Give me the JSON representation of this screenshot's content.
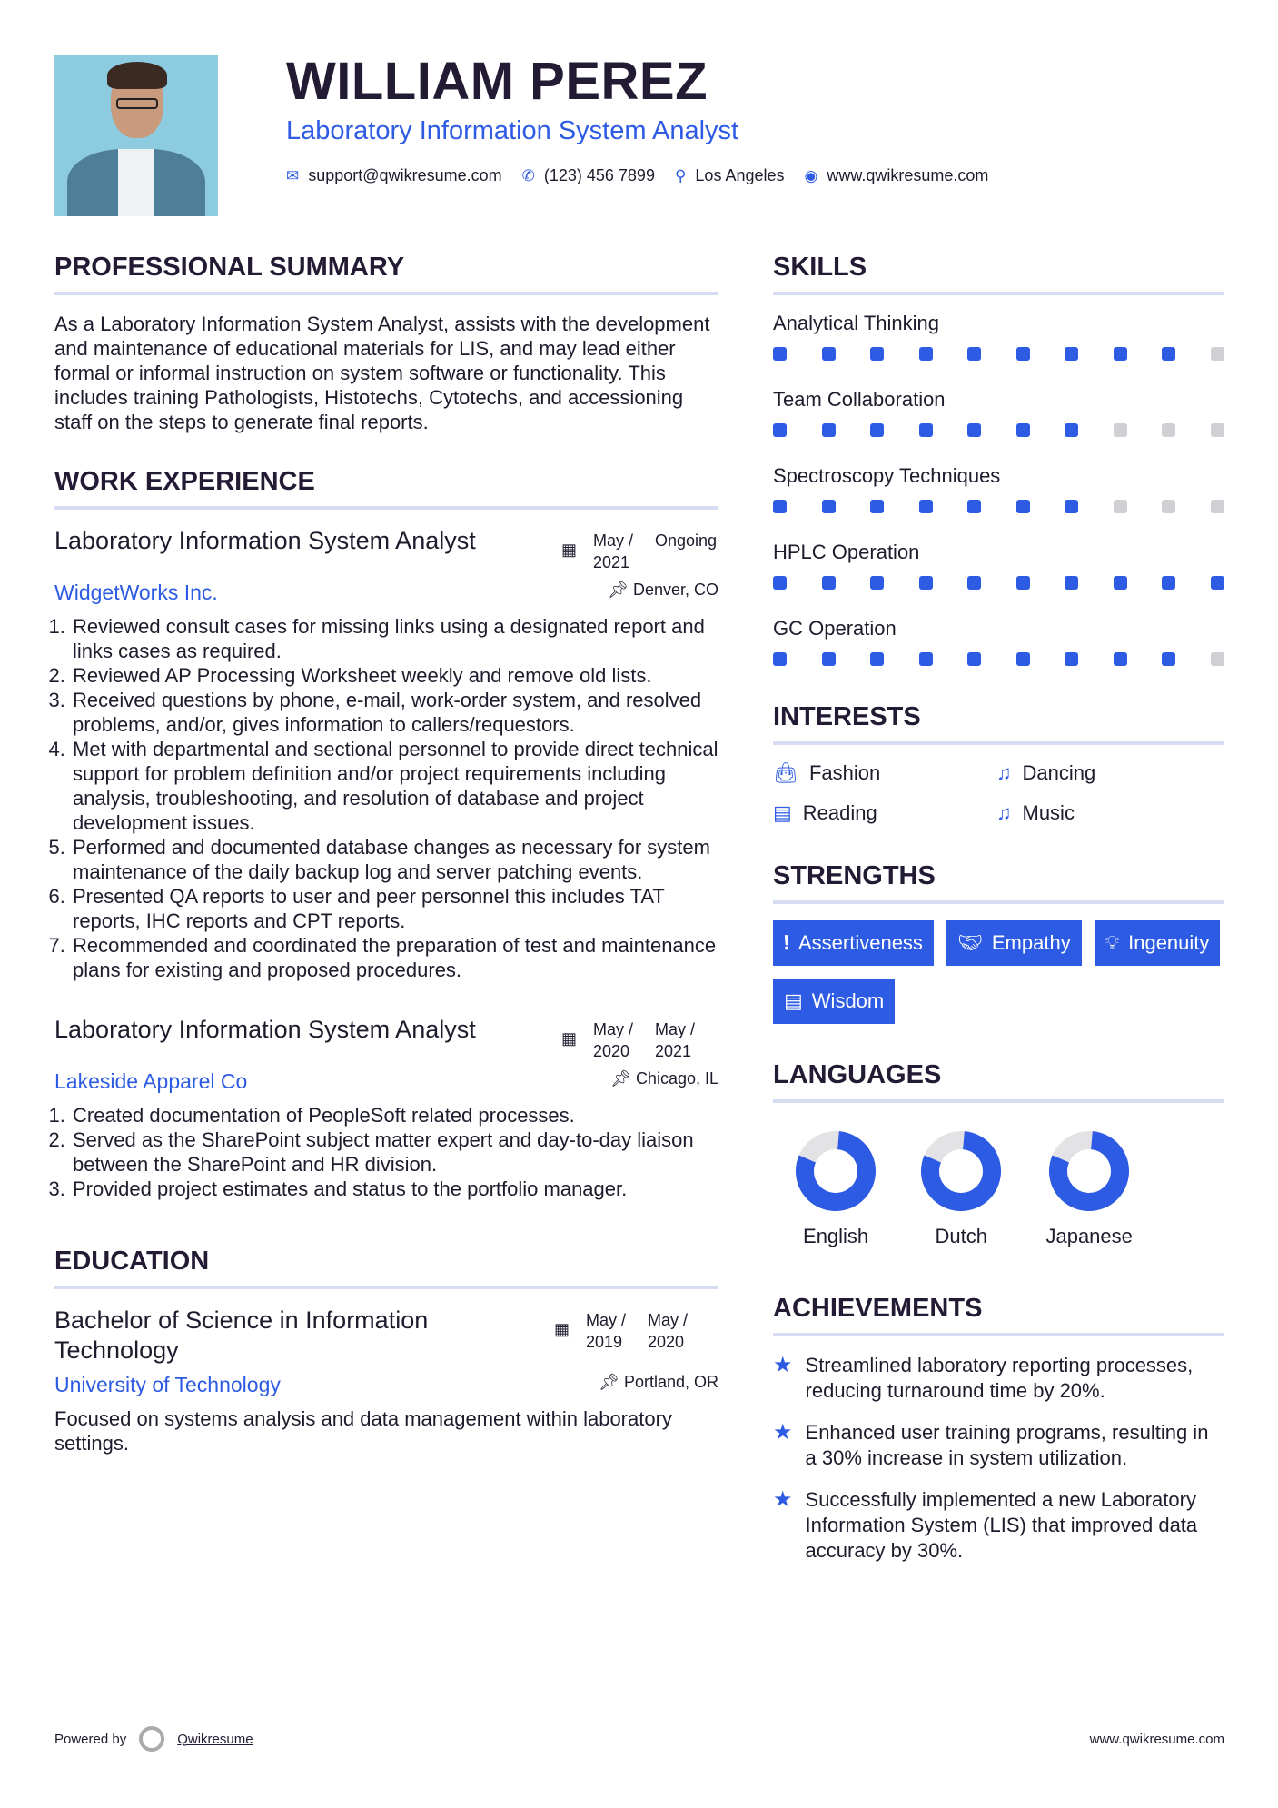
{
  "header": {
    "name": "WILLIAM PEREZ",
    "title": "Laboratory Information System Analyst",
    "email": "support@qwikresume.com",
    "phone": "(123) 456 7899",
    "location": "Los Angeles",
    "website": "www.qwikresume.com"
  },
  "accent_color": "#2d5be3",
  "summary": {
    "heading": "PROFESSIONAL SUMMARY",
    "text": "As a Laboratory Information System Analyst, assists with the development and maintenance of educational materials for LIS, and may lead either formal or informal instruction on system software or functionality. This includes training Pathologists, Histotechs, Cytotechs, and accessioning staff on the steps to generate final reports."
  },
  "experience": {
    "heading": "WORK EXPERIENCE",
    "jobs": [
      {
        "title": "Laboratory Information System Analyst",
        "start": "May / 2021",
        "end": "Ongoing",
        "company": "WidgetWorks Inc.",
        "location": "Denver, CO",
        "items": [
          "Reviewed consult cases for missing links using a designated report and links cases as required.",
          "Reviewed AP Processing Worksheet weekly and remove old lists.",
          "Received questions by phone, e-mail, work-order system, and resolved problems, and/or, gives information to callers/requestors.",
          "Met with departmental and sectional personnel to provide direct technical support for problem definition and/or project requirements including analysis, troubleshooting, and resolution of database and project development issues.",
          "Performed and documented database changes as necessary for system maintenance of the daily backup log and server patching events.",
          "Presented QA reports to user and peer personnel this includes TAT reports, IHC reports and CPT reports.",
          "Recommended and coordinated the preparation of test and maintenance plans for existing and proposed procedures."
        ]
      },
      {
        "title": "Laboratory Information System Analyst",
        "start": "May / 2020",
        "end": "May / 2021",
        "company": "Lakeside Apparel Co",
        "location": "Chicago, IL",
        "items": [
          "Created documentation of PeopleSoft related processes.",
          "Served as the SharePoint subject matter expert and day-to-day liaison between the SharePoint and HR division.",
          "Provided project estimates and status to the portfolio manager."
        ]
      }
    ]
  },
  "education": {
    "heading": "EDUCATION",
    "degree": "Bachelor of Science in Information Technology",
    "start": "May / 2019",
    "end": "May / 2020",
    "school": "University of Technology",
    "location": "Portland, OR",
    "text": "Focused on systems analysis and data management within laboratory settings."
  },
  "skills": {
    "heading": "SKILLS",
    "items": [
      {
        "name": "Analytical Thinking",
        "level": 9,
        "max": 10
      },
      {
        "name": "Team Collaboration",
        "level": 7,
        "max": 10
      },
      {
        "name": "Spectroscopy Techniques",
        "level": 7,
        "max": 10
      },
      {
        "name": "HPLC Operation",
        "level": 10,
        "max": 10
      },
      {
        "name": "GC Operation",
        "level": 9,
        "max": 10
      }
    ]
  },
  "interests": {
    "heading": "INTERESTS",
    "items": [
      {
        "label": "Fashion",
        "icon": "shopping-bag-icon"
      },
      {
        "label": "Dancing",
        "icon": "music-icon"
      },
      {
        "label": "Reading",
        "icon": "book-icon"
      },
      {
        "label": "Music",
        "icon": "music-icon"
      }
    ]
  },
  "strengths": {
    "heading": "STRENGTHS",
    "items": [
      {
        "label": "Assertiveness",
        "icon": "exclamation-circle-icon"
      },
      {
        "label": "Empathy",
        "icon": "handshake-icon"
      },
      {
        "label": "Ingenuity",
        "icon": "lightbulb-icon"
      },
      {
        "label": "Wisdom",
        "icon": "book-icon"
      }
    ]
  },
  "languages": {
    "heading": "LANGUAGES",
    "items": [
      {
        "name": "English",
        "level": 0.8
      },
      {
        "name": "Dutch",
        "level": 0.8
      },
      {
        "name": "Japanese",
        "level": 0.8
      }
    ]
  },
  "achievements": {
    "heading": "ACHIEVEMENTS",
    "items": [
      "Streamlined laboratory reporting processes, reducing turnaround time by 20%.",
      "Enhanced user training programs, resulting in a 30% increase in system utilization.",
      "Successfully implemented a new Laboratory Information System (LIS) that improved data accuracy by 30%."
    ]
  },
  "footer": {
    "powered_by": "Powered by",
    "brand": "Qwikresume",
    "website": "www.qwikresume.com"
  }
}
